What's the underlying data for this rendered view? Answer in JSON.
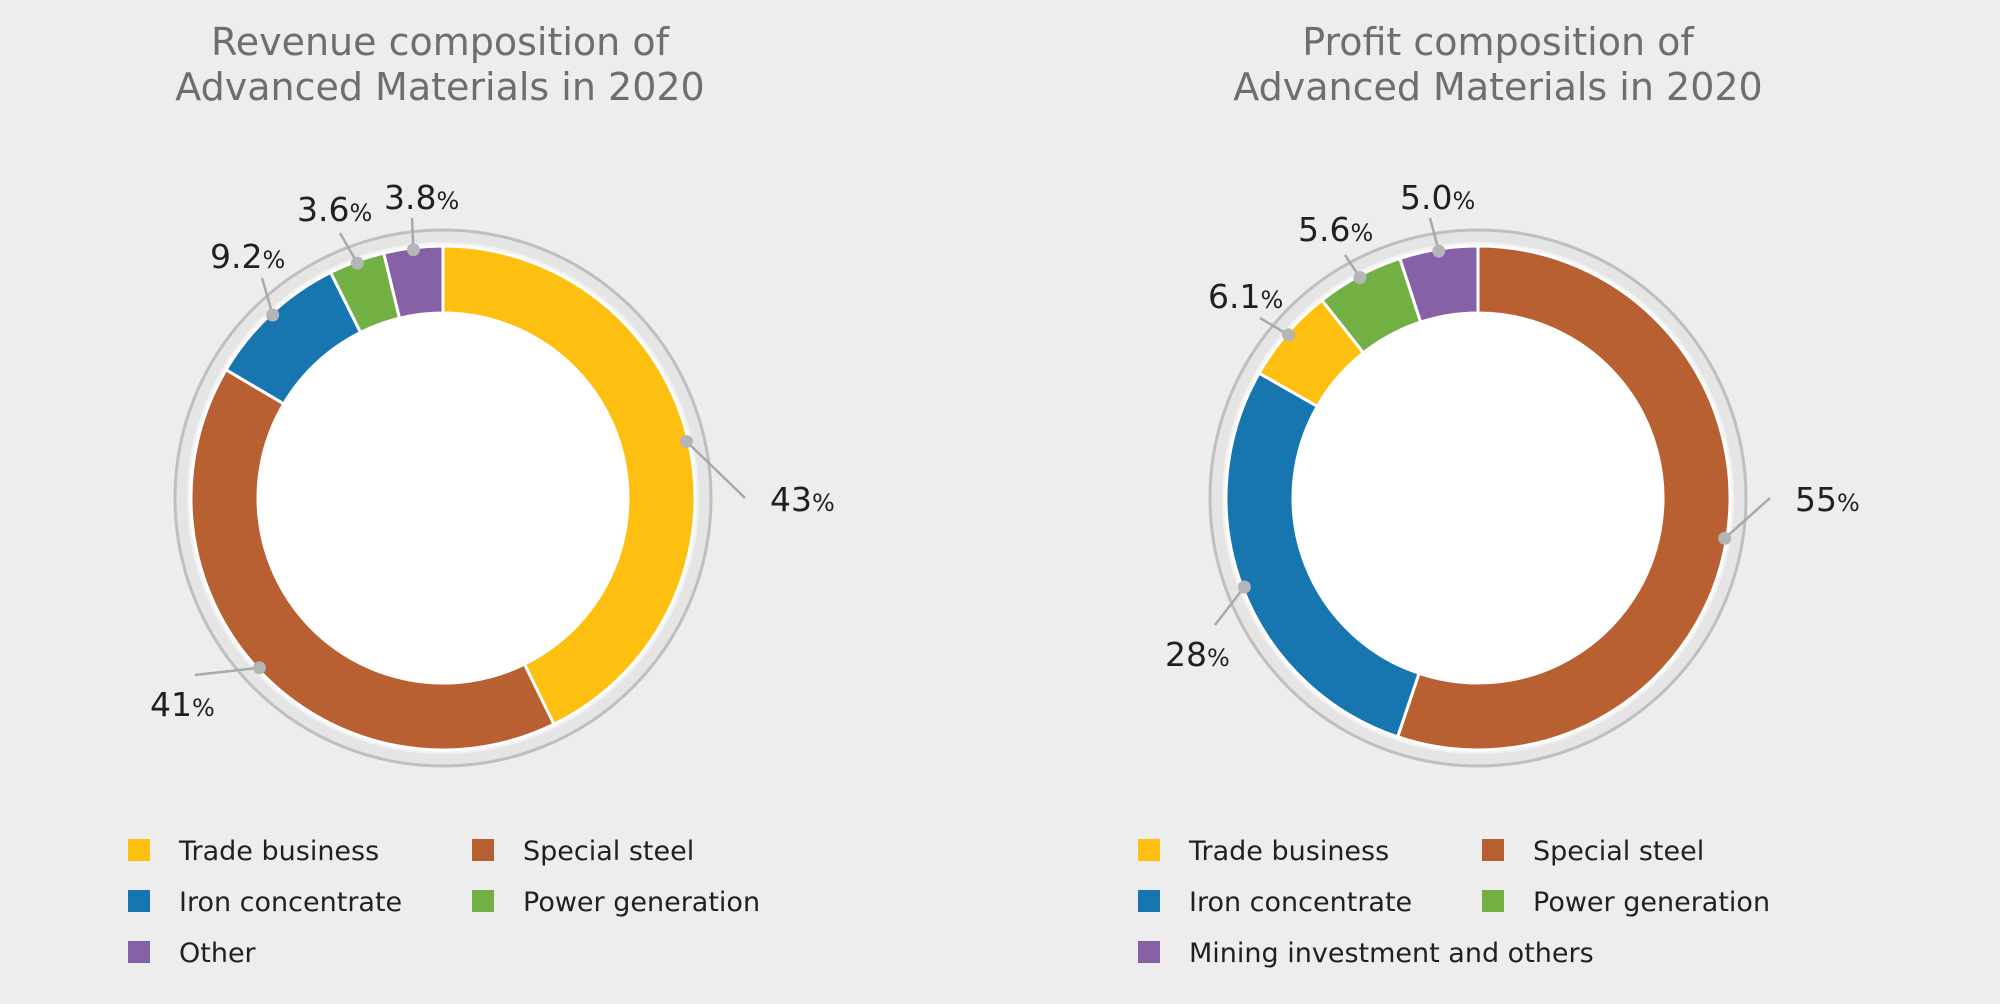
{
  "chart_data": [
    {
      "type": "pie",
      "donut": true,
      "title": "Revenue composition of\nAdvanced Materials in 2020",
      "start_angle_deg": 0,
      "direction": "clockwise",
      "unit": "%",
      "slices": [
        {
          "label": "Trade business",
          "value": 43,
          "display": "43",
          "color": "#fdbf10"
        },
        {
          "label": "Special steel",
          "value": 41,
          "display": "41",
          "color": "#b96033"
        },
        {
          "label": "Iron concentrate",
          "value": 9.2,
          "display": "9.2",
          "color": "#1775b0"
        },
        {
          "label": "Power generation",
          "value": 3.6,
          "display": "3.6",
          "color": "#72b043"
        },
        {
          "label": "Other",
          "value": 3.8,
          "display": "3.8",
          "color": "#8661a5"
        }
      ],
      "legend": [
        {
          "label": "Trade business",
          "color": "#fdbf10"
        },
        {
          "label": "Special steel",
          "color": "#b96033"
        },
        {
          "label": "Iron concentrate",
          "color": "#1775b0"
        },
        {
          "label": "Power generation",
          "color": "#72b043"
        },
        {
          "label": "Other",
          "color": "#8661a5"
        }
      ],
      "legend_placement": "bottom"
    },
    {
      "type": "pie",
      "donut": true,
      "title": "Profit composition of\nAdvanced Materials in 2020",
      "start_angle_deg": 0,
      "direction": "clockwise",
      "unit": "%",
      "slices": [
        {
          "label": "Special steel",
          "value": 55,
          "display": "55",
          "color": "#b96033"
        },
        {
          "label": "Iron concentrate",
          "value": 28,
          "display": "28",
          "color": "#1775b0"
        },
        {
          "label": "Trade business",
          "value": 6.1,
          "display": "6.1",
          "color": "#fdbf10"
        },
        {
          "label": "Power generation",
          "value": 5.6,
          "display": "5.6",
          "color": "#72b043"
        },
        {
          "label": "Mining investment and others",
          "value": 5.0,
          "display": "5.0",
          "color": "#8661a5"
        }
      ],
      "legend": [
        {
          "label": "Trade business",
          "color": "#fdbf10"
        },
        {
          "label": "Special steel",
          "color": "#b96033"
        },
        {
          "label": "Iron concentrate",
          "color": "#1775b0"
        },
        {
          "label": "Power generation",
          "color": "#72b043"
        },
        {
          "label": "Mining investment and others",
          "color": "#8661a5"
        }
      ],
      "legend_placement": "bottom"
    }
  ]
}
